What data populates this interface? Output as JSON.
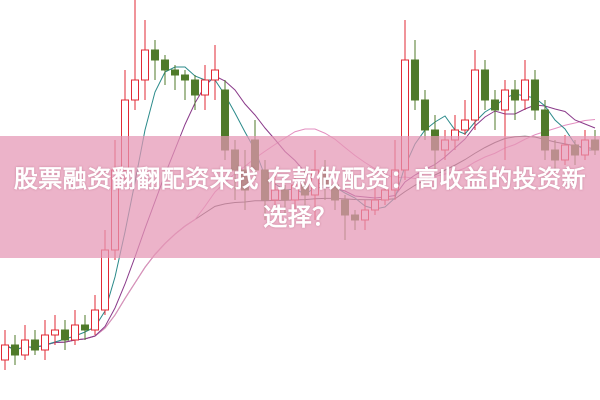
{
  "title": "股票融资翻翻配资来找 存款做配资：高收益的投资新选择？",
  "colors": {
    "up": "#e02a35",
    "down": "#4f7a2a",
    "ma1": "#2a8a8a",
    "ma2": "#8a3a8a",
    "ma3": "#e38fc0",
    "ma4": "#555555",
    "banner": "#e496b4"
  },
  "chart_data": {
    "type": "candlestick",
    "fields": [
      "open",
      "close",
      "high",
      "low"
    ],
    "candles": [
      [
        40,
        55,
        70,
        30
      ],
      [
        55,
        45,
        65,
        35
      ],
      [
        45,
        60,
        75,
        40
      ],
      [
        60,
        50,
        70,
        45
      ],
      [
        50,
        65,
        80,
        40
      ],
      [
        65,
        70,
        85,
        55
      ],
      [
        70,
        60,
        80,
        50
      ],
      [
        60,
        75,
        90,
        55
      ],
      [
        75,
        70,
        85,
        60
      ],
      [
        70,
        90,
        105,
        65
      ],
      [
        90,
        150,
        170,
        85
      ],
      [
        150,
        230,
        260,
        140
      ],
      [
        230,
        300,
        330,
        220
      ],
      [
        300,
        320,
        400,
        290
      ],
      [
        320,
        350,
        380,
        300
      ],
      [
        350,
        340,
        360,
        320
      ],
      [
        340,
        330,
        345,
        315
      ],
      [
        330,
        325,
        335,
        310
      ],
      [
        325,
        320,
        330,
        300
      ],
      [
        320,
        305,
        325,
        290
      ],
      [
        305,
        320,
        335,
        290
      ],
      [
        320,
        330,
        355,
        300
      ],
      [
        310,
        250,
        320,
        240
      ],
      [
        250,
        230,
        260,
        200
      ],
      [
        230,
        210,
        250,
        190
      ],
      [
        260,
        230,
        280,
        220
      ],
      [
        230,
        200,
        240,
        180
      ],
      [
        200,
        210,
        225,
        195
      ],
      [
        210,
        200,
        215,
        185
      ],
      [
        200,
        215,
        225,
        190
      ],
      [
        215,
        205,
        230,
        195
      ],
      [
        205,
        230,
        250,
        180
      ],
      [
        230,
        215,
        240,
        200
      ],
      [
        215,
        200,
        220,
        190
      ],
      [
        200,
        185,
        205,
        160
      ],
      [
        185,
        180,
        190,
        170
      ],
      [
        180,
        190,
        200,
        170
      ],
      [
        190,
        200,
        215,
        185
      ],
      [
        200,
        210,
        220,
        195
      ],
      [
        210,
        230,
        260,
        200
      ],
      [
        230,
        340,
        380,
        220
      ],
      [
        340,
        300,
        360,
        290
      ],
      [
        300,
        270,
        310,
        260
      ],
      [
        270,
        250,
        285,
        230
      ],
      [
        250,
        260,
        270,
        240
      ],
      [
        260,
        270,
        285,
        250
      ],
      [
        270,
        280,
        300,
        265
      ],
      [
        280,
        330,
        350,
        270
      ],
      [
        330,
        300,
        340,
        290
      ],
      [
        300,
        290,
        310,
        270
      ],
      [
        290,
        310,
        320,
        240
      ],
      [
        310,
        300,
        320,
        280
      ],
      [
        300,
        320,
        340,
        290
      ],
      [
        320,
        290,
        330,
        280
      ],
      [
        290,
        250,
        300,
        240
      ],
      [
        250,
        240,
        260,
        230
      ],
      [
        240,
        255,
        265,
        235
      ],
      [
        255,
        245,
        260,
        235
      ],
      [
        245,
        260,
        270,
        240
      ],
      [
        260,
        250,
        270,
        245
      ]
    ],
    "title": "",
    "xlabel": "",
    "ylabel": "",
    "grid": false
  }
}
